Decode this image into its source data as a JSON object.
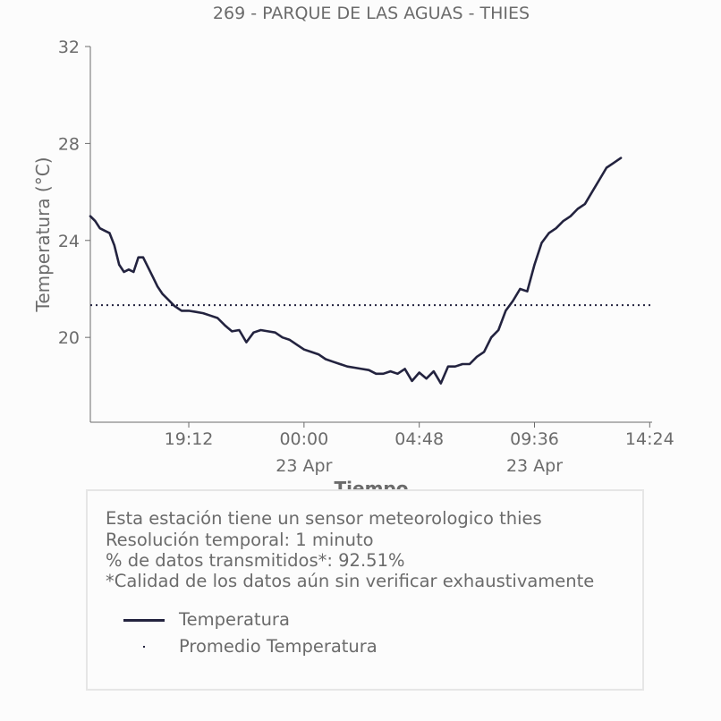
{
  "chart_data": {
    "type": "line",
    "title": "269 - PARQUE DE LAS AGUAS - THIES",
    "xlabel": "Tiempo",
    "ylabel": "Temperatura (°C)",
    "ylim": [
      16.5,
      32
    ],
    "xlim_hours": [
      15.1,
      38.5
    ],
    "yticks": [
      20,
      24,
      28,
      32
    ],
    "ytick_labels": [
      "20",
      "24",
      "28",
      "32"
    ],
    "xticks": [
      {
        "hour": 19.2,
        "label": "19:12",
        "sublabel": ""
      },
      {
        "hour": 24.0,
        "label": "00:00",
        "sublabel": "23 Apr"
      },
      {
        "hour": 28.8,
        "label": "04:48",
        "sublabel": ""
      },
      {
        "hour": 33.6,
        "label": "09:36",
        "sublabel": "23 Apr"
      },
      {
        "hour": 38.4,
        "label": "14:24",
        "sublabel": ""
      }
    ],
    "grid": false,
    "series": [
      {
        "name": "Temperatura",
        "color": "#23233f",
        "style": "solid",
        "x_hours": [
          15.1,
          15.3,
          15.5,
          15.7,
          15.9,
          16.1,
          16.3,
          16.5,
          16.7,
          16.9,
          17.1,
          17.3,
          17.5,
          17.7,
          17.9,
          18.1,
          18.3,
          18.6,
          18.9,
          19.2,
          19.5,
          19.8,
          20.1,
          20.4,
          20.7,
          21.0,
          21.3,
          21.6,
          21.9,
          22.2,
          22.5,
          22.8,
          23.1,
          23.4,
          23.7,
          24.0,
          24.3,
          24.6,
          24.9,
          25.2,
          25.5,
          25.8,
          26.1,
          26.4,
          26.7,
          27.0,
          27.3,
          27.6,
          27.9,
          28.2,
          28.5,
          28.8,
          29.1,
          29.4,
          29.7,
          30.0,
          30.3,
          30.6,
          30.9,
          31.2,
          31.5,
          31.8,
          32.1,
          32.4,
          32.7,
          33.0,
          33.3,
          33.6,
          33.9,
          34.2,
          34.5,
          34.8,
          35.1,
          35.4,
          35.7,
          36.0,
          36.3,
          36.6,
          36.9,
          37.2
        ],
        "values": [
          25.0,
          24.8,
          24.5,
          24.4,
          24.3,
          23.8,
          23.0,
          22.7,
          22.8,
          22.7,
          23.3,
          23.3,
          22.9,
          22.5,
          22.1,
          21.8,
          21.6,
          21.3,
          21.1,
          21.1,
          21.05,
          21.0,
          20.9,
          20.8,
          20.5,
          20.25,
          20.3,
          19.8,
          20.2,
          20.3,
          20.25,
          20.2,
          20.0,
          19.9,
          19.7,
          19.5,
          19.4,
          19.3,
          19.1,
          19.0,
          18.9,
          18.8,
          18.75,
          18.7,
          18.65,
          18.5,
          18.5,
          18.6,
          18.5,
          18.7,
          18.2,
          18.55,
          18.3,
          18.6,
          18.1,
          18.8,
          18.8,
          18.9,
          18.9,
          19.2,
          19.4,
          20.0,
          20.3,
          21.1,
          21.5,
          22.0,
          21.9,
          23.0,
          23.9,
          24.3,
          24.5,
          24.8,
          25.0,
          25.3,
          25.5,
          26.0,
          26.5,
          27.0,
          27.2,
          27.4
        ]
      },
      {
        "name": "Promedio Temperatura",
        "color": "#23233f",
        "style": "dotted",
        "value": 21.33
      }
    ]
  },
  "info": {
    "line1": "Esta estación tiene un sensor meteorologico thies",
    "line2": "Resolución temporal: 1 minuto",
    "line3": "% de datos transmitidos*: 92.51%",
    "line4": "*Calidad de los datos aún sin verificar exhaustivamente"
  },
  "legend": {
    "temp_label": "Temperatura",
    "avg_label": "Promedio Temperatura"
  },
  "colors": {
    "line": "#23233f",
    "text": "#6b6b6b",
    "axis": "#6b6b6b"
  }
}
